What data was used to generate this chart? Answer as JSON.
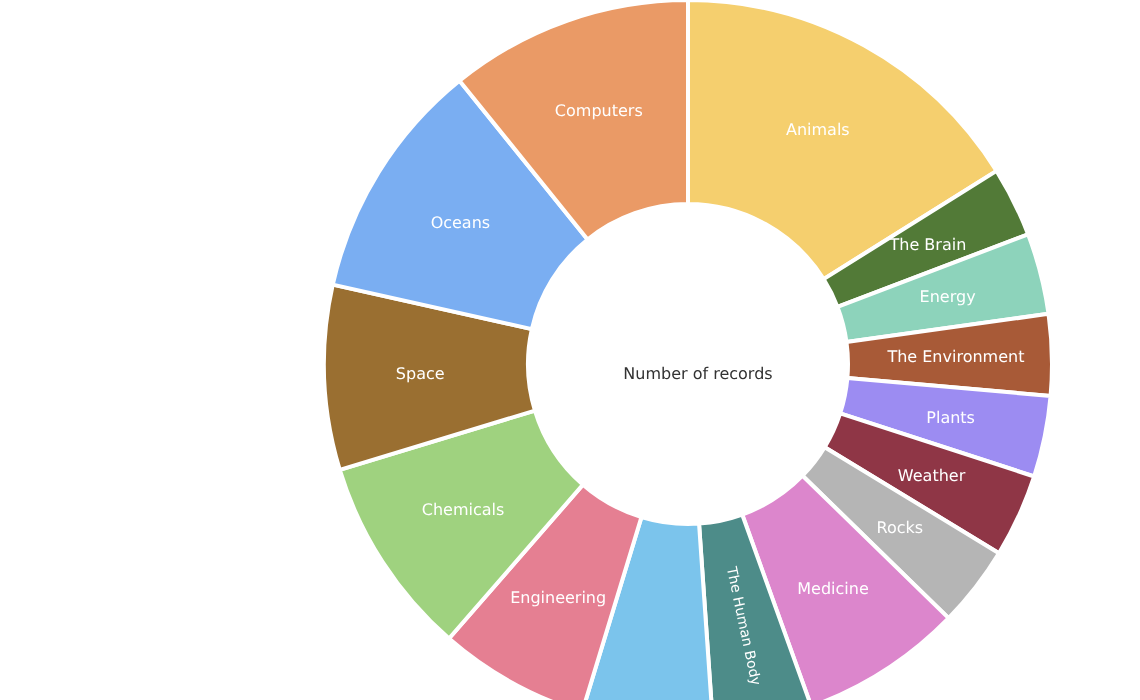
{
  "chart_data": {
    "type": "donut",
    "title": "Number of records",
    "categories": [
      "Animals",
      "The Brain",
      "Energy",
      "The Environment",
      "Plants",
      "Weather",
      "Rocks",
      "Medicine",
      "The Human Body",
      null,
      "Engineering",
      "Chemicals",
      "Space",
      "Oceans",
      "Computers"
    ],
    "values": [
      16.1,
      3.1,
      3.6,
      3.6,
      3.6,
      3.7,
      3.6,
      7.2,
      4.4,
      5.8,
      6.7,
      8.9,
      8.2,
      10.7,
      10.8
    ],
    "colors": [
      "#f5cf6e",
      "#527a37",
      "#8dd3bb",
      "#a85a37",
      "#9c8cf2",
      "#8f3646",
      "#b5b5b5",
      "#dc86cc",
      "#4d8c89",
      "#7bc4ec",
      "#e57f92",
      "#9fd27f",
      "#9a6f31",
      "#7aaef2",
      "#ea9a66"
    ],
    "legend": false
  }
}
